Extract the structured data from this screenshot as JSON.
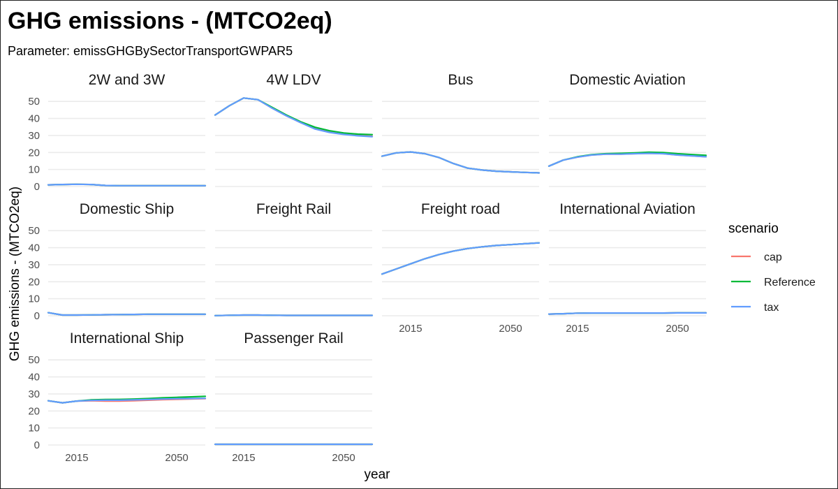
{
  "chart_data": {
    "type": "line",
    "title": "GHG emissions - (MTCO2eq)",
    "subtitle": "Parameter: emissGHGBySectorTransportGWPAR5",
    "xlabel": "year",
    "ylabel": "GHG emissions - (MTCO2eq)",
    "xlim": [
      2005,
      2060
    ],
    "ylim": [
      0,
      55
    ],
    "x_ticks": [
      2015,
      2050
    ],
    "y_ticks": [
      0,
      10,
      20,
      30,
      40,
      50
    ],
    "grid": true,
    "legend": {
      "title": "scenario",
      "position": "right",
      "entries": [
        "cap",
        "Reference",
        "tax"
      ]
    },
    "colors": {
      "cap": "#F8766D",
      "Reference": "#00BA38",
      "tax": "#619CFF"
    },
    "x": [
      2005,
      2010,
      2015,
      2020,
      2025,
      2030,
      2035,
      2040,
      2045,
      2050,
      2055,
      2060
    ],
    "panels": [
      {
        "name": "2W and 3W",
        "series": [
          {
            "name": "cap",
            "values": [
              1.0,
              1.2,
              1.3,
              1.2,
              0.6,
              0.5,
              0.5,
              0.5,
              0.5,
              0.5,
              0.5,
              0.5
            ]
          },
          {
            "name": "Reference",
            "values": [
              1.0,
              1.2,
              1.3,
              1.2,
              0.6,
              0.5,
              0.5,
              0.5,
              0.5,
              0.5,
              0.5,
              0.5
            ]
          },
          {
            "name": "tax",
            "values": [
              1.0,
              1.2,
              1.3,
              1.2,
              0.6,
              0.5,
              0.5,
              0.5,
              0.5,
              0.5,
              0.5,
              0.5
            ]
          }
        ]
      },
      {
        "name": "4W LDV",
        "series": [
          {
            "name": "cap",
            "values": [
              42.0,
              47.5,
              52.0,
              51.0,
              46.0,
              41.5,
              37.5,
              34.0,
              32.0,
              30.8,
              30.0,
              29.5
            ]
          },
          {
            "name": "Reference",
            "values": [
              42.0,
              47.5,
              52.0,
              51.0,
              46.5,
              42.0,
              38.0,
              34.8,
              32.8,
              31.5,
              30.8,
              30.5
            ]
          },
          {
            "name": "tax",
            "values": [
              42.0,
              47.5,
              52.0,
              51.0,
              46.0,
              41.5,
              37.5,
              33.8,
              31.8,
              30.6,
              29.8,
              29.3
            ]
          }
        ]
      },
      {
        "name": "Bus",
        "series": [
          {
            "name": "cap",
            "values": [
              17.8,
              19.8,
              20.3,
              19.3,
              17.0,
              13.5,
              10.8,
              9.7,
              9.0,
              8.6,
              8.3,
              8.0
            ]
          },
          {
            "name": "Reference",
            "values": [
              17.8,
              19.8,
              20.3,
              19.3,
              17.0,
              13.5,
              10.8,
              9.7,
              9.0,
              8.6,
              8.3,
              8.0
            ]
          },
          {
            "name": "tax",
            "values": [
              17.8,
              19.8,
              20.3,
              19.3,
              17.0,
              13.5,
              10.8,
              9.7,
              9.0,
              8.6,
              8.3,
              8.0
            ]
          }
        ]
      },
      {
        "name": "Domestic Aviation",
        "series": [
          {
            "name": "cap",
            "values": [
              12.0,
              15.5,
              17.3,
              18.5,
              19.0,
              19.0,
              19.3,
              19.5,
              19.3,
              18.5,
              18.0,
              17.5
            ]
          },
          {
            "name": "Reference",
            "values": [
              12.0,
              15.5,
              17.5,
              18.7,
              19.3,
              19.5,
              19.8,
              20.2,
              20.0,
              19.3,
              18.8,
              18.3
            ]
          },
          {
            "name": "tax",
            "values": [
              12.0,
              15.5,
              17.3,
              18.5,
              19.0,
              19.0,
              19.3,
              19.5,
              19.3,
              18.5,
              18.0,
              17.5
            ]
          }
        ]
      },
      {
        "name": "Domestic Ship",
        "series": [
          {
            "name": "cap",
            "values": [
              1.8,
              0.4,
              0.4,
              0.5,
              0.6,
              0.7,
              0.8,
              0.9,
              0.9,
              0.9,
              0.9,
              0.9
            ]
          },
          {
            "name": "Reference",
            "values": [
              1.8,
              0.4,
              0.4,
              0.5,
              0.6,
              0.7,
              0.8,
              0.9,
              0.9,
              0.9,
              0.9,
              0.9
            ]
          },
          {
            "name": "tax",
            "values": [
              1.8,
              0.4,
              0.4,
              0.5,
              0.6,
              0.7,
              0.8,
              0.9,
              0.9,
              0.9,
              0.9,
              0.9
            ]
          }
        ]
      },
      {
        "name": "Freight Rail",
        "series": [
          {
            "name": "cap",
            "values": [
              0.1,
              0.3,
              0.4,
              0.4,
              0.3,
              0.2,
              0.2,
              0.2,
              0.2,
              0.2,
              0.2,
              0.2
            ]
          },
          {
            "name": "Reference",
            "values": [
              0.1,
              0.3,
              0.4,
              0.4,
              0.3,
              0.2,
              0.2,
              0.2,
              0.2,
              0.2,
              0.2,
              0.2
            ]
          },
          {
            "name": "tax",
            "values": [
              0.1,
              0.3,
              0.4,
              0.4,
              0.3,
              0.2,
              0.2,
              0.2,
              0.2,
              0.2,
              0.2,
              0.2
            ]
          }
        ]
      },
      {
        "name": "Freight road",
        "series": [
          {
            "name": "cap",
            "values": [
              24.5,
              27.5,
              30.5,
              33.5,
              36.0,
              38.0,
              39.5,
              40.5,
              41.3,
              41.8,
              42.3,
              42.8
            ]
          },
          {
            "name": "Reference",
            "values": [
              24.5,
              27.5,
              30.5,
              33.5,
              36.0,
              38.0,
              39.5,
              40.5,
              41.3,
              41.8,
              42.3,
              42.8
            ]
          },
          {
            "name": "tax",
            "values": [
              24.5,
              27.5,
              30.5,
              33.5,
              36.0,
              38.0,
              39.5,
              40.5,
              41.3,
              41.8,
              42.3,
              42.8
            ]
          }
        ]
      },
      {
        "name": "International Aviation",
        "series": [
          {
            "name": "cap",
            "values": [
              1.0,
              1.2,
              1.5,
              1.6,
              1.6,
              1.6,
              1.6,
              1.6,
              1.6,
              1.7,
              1.7,
              1.7
            ]
          },
          {
            "name": "Reference",
            "values": [
              1.0,
              1.2,
              1.5,
              1.6,
              1.6,
              1.6,
              1.6,
              1.6,
              1.6,
              1.7,
              1.7,
              1.7
            ]
          },
          {
            "name": "tax",
            "values": [
              1.0,
              1.2,
              1.5,
              1.6,
              1.6,
              1.6,
              1.6,
              1.6,
              1.6,
              1.7,
              1.7,
              1.7
            ]
          }
        ]
      },
      {
        "name": "International Ship",
        "series": [
          {
            "name": "cap",
            "values": [
              26.0,
              24.8,
              25.8,
              26.0,
              25.8,
              25.8,
              26.0,
              26.3,
              26.6,
              26.8,
              27.0,
              27.2
            ]
          },
          {
            "name": "Reference",
            "values": [
              26.0,
              24.8,
              25.8,
              26.5,
              26.7,
              26.8,
              27.0,
              27.3,
              27.7,
              28.0,
              28.3,
              28.6
            ]
          },
          {
            "name": "tax",
            "values": [
              26.0,
              24.8,
              25.8,
              26.2,
              26.3,
              26.3,
              26.5,
              26.7,
              27.0,
              27.2,
              27.3,
              27.4
            ]
          }
        ]
      },
      {
        "name": "Passenger Rail",
        "series": [
          {
            "name": "cap",
            "values": [
              0.4,
              0.4,
              0.4,
              0.4,
              0.4,
              0.4,
              0.4,
              0.4,
              0.4,
              0.4,
              0.4,
              0.4
            ]
          },
          {
            "name": "Reference",
            "values": [
              0.4,
              0.4,
              0.4,
              0.4,
              0.4,
              0.4,
              0.4,
              0.4,
              0.4,
              0.4,
              0.4,
              0.4
            ]
          },
          {
            "name": "tax",
            "values": [
              0.4,
              0.4,
              0.4,
              0.4,
              0.4,
              0.4,
              0.4,
              0.4,
              0.4,
              0.4,
              0.4,
              0.4
            ]
          }
        ]
      }
    ]
  }
}
